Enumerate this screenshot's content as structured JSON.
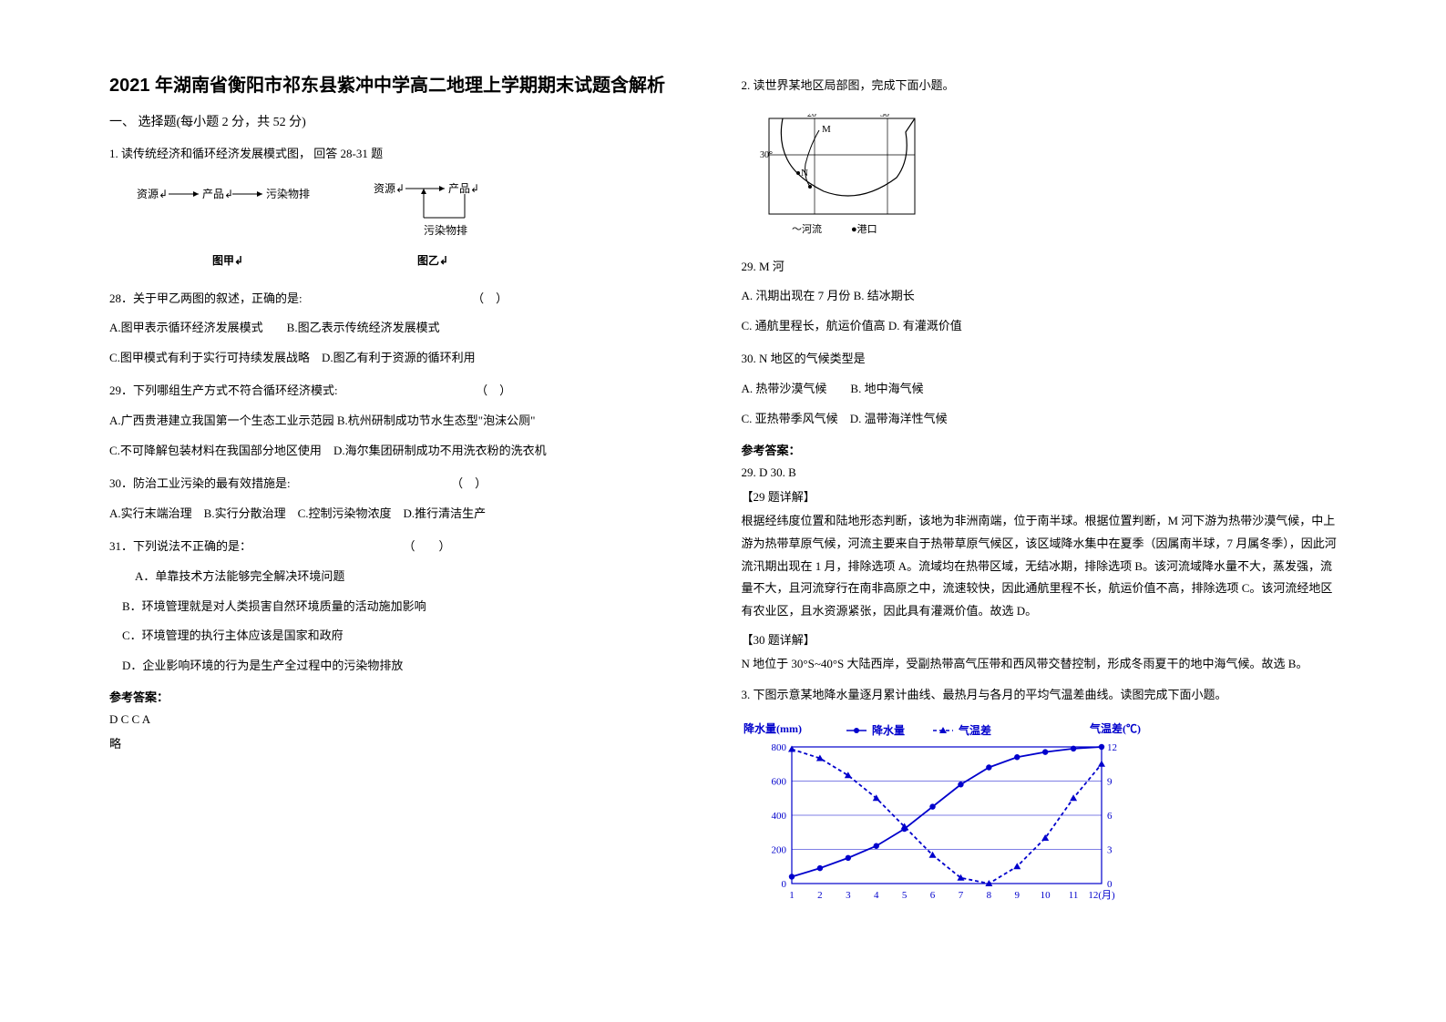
{
  "title": "2021 年湖南省衡阳市祁东县紫冲中学高二地理上学期期末试题含解析",
  "section1_head": "一、 选择题(每小题 2 分，共 52 分)",
  "q1_intro": "1. 读传统经济和循环经济发展模式图， 回答 28-31 题",
  "diagram": {
    "jia": {
      "flow": [
        "资源↲",
        "产品↲",
        "污染物排"
      ],
      "label": "图甲↲"
    },
    "yi": {
      "top_left": "资源↲",
      "top_right": "产品↲",
      "bottom": "污染物排",
      "label": "图乙↲"
    }
  },
  "q28": {
    "stem": "28．关于甲乙两图的叙述，正确的是:",
    "paren": "（　）",
    "optA": "A.图甲表示循环经济发展模式",
    "optB": "B.图乙表示传统经济发展模式",
    "optC": "C.图甲模式有利于实行可持续发展战略",
    "optD": "D.图乙有利于资源的循环利用"
  },
  "q29": {
    "stem": "29．下列哪组生产方式不符合循环经济模式:",
    "paren": "（　）",
    "optA": "A.广西贵港建立我国第一个生态工业示范园",
    "optB": "B.杭州研制成功节水生态型\"泡沫公厕\"",
    "optC": "C.不可降解包装材料在我国部分地区使用",
    "optD": "D.海尔集团研制成功不用洗衣粉的洗衣机"
  },
  "q30": {
    "stem": "30．防治工业污染的最有效措施是:",
    "paren": "（　）",
    "optA": "A.实行末端治理",
    "optB": "B.实行分散治理",
    "optC": "C.控制污染物浓度",
    "optD": "D.推行清洁生产"
  },
  "q31": {
    "stem": "31．下列说法不正确的是：",
    "paren": "（　　）",
    "optA": "A．单靠技术方法能够完全解决环境问题",
    "optB": "B．环境管理就是对人类损害自然环境质量的活动施加影响",
    "optC": "C．环境管理的执行主体应该是国家和政府",
    "optD": "D．企业影响环境的行为是生产全过程中的污染物排放"
  },
  "ans1_head": "参考答案：",
  "ans1": "D  C  C  A",
  "ans1_note": "略",
  "q2_intro": "2. 读世界某地区局部图，完成下面小题。",
  "map": {
    "lon_left": "20°",
    "lon_right": "30°",
    "lat": "30°",
    "M": "M",
    "N": "N",
    "legend_river": "～河流",
    "legend_port": "●港口"
  },
  "q29b": {
    "stem": "29.  M 河",
    "optA": "A.  汛期出现在 7 月份",
    "optB": "B.  结冰期长",
    "optC": "C.  通航里程长，航运价值高",
    "optD": "D.  有灌溉价值"
  },
  "q30b": {
    "stem": "30.  N 地区的气候类型是",
    "optA": "A.  热带沙漠气候",
    "optB": "B.  地中海气候",
    "optC": "C.  亚热带季风气候",
    "optD": "D.  温带海洋性气候"
  },
  "ans2_head": "参考答案：",
  "ans2": "29. D       30. B",
  "explain29_head": "【29 题详解】",
  "explain29_body": "根据经纬度位置和陆地形态判断，该地为非洲南端，位于南半球。根据位置判断，M 河下游为热带沙漠气候，中上游为热带草原气候，河流主要来自于热带草原气候区，该区域降水集中在夏季（因属南半球，7 月属冬季），因此河流汛期出现在 1 月，排除选项 A。流域均在热带区域，无结冰期，排除选项 B。该河流域降水量不大，蒸发强，流量不大，且河流穿行在南非高原之中，流速较快，因此通航里程不长，航运价值不高，排除选项 C。该河流经地区有农业区，且水资源紧张，因此具有灌溉价值。故选 D。",
  "explain30_head": "【30 题详解】",
  "explain30_body": "N 地位于 30°S~40°S 大陆西岸，受副热带高气压带和西风带交替控制，形成冬雨夏干的地中海气候。故选 B。",
  "q3_intro": "3. 下图示意某地降水量逐月累计曲线、最热月与各月的平均气温差曲线。读图完成下面小题。",
  "chart": {
    "type": "line",
    "title_left": "降水量(mm)",
    "title_right": "气温差(℃)",
    "legend_precip": "降水量",
    "legend_temp": "气温差",
    "x_label": "12(月)",
    "x_ticks": [
      "1",
      "2",
      "3",
      "4",
      "5",
      "6",
      "7",
      "8",
      "9",
      "10",
      "11",
      "12(月)"
    ],
    "y_left_ticks": [
      0,
      200,
      400,
      600,
      800
    ],
    "y_right_ticks": [
      0,
      3,
      6,
      9,
      12
    ],
    "precip_values": [
      40,
      90,
      150,
      220,
      320,
      450,
      580,
      680,
      740,
      770,
      790,
      800
    ],
    "temp_values": [
      11.8,
      11.0,
      9.5,
      7.5,
      5.0,
      2.5,
      0.5,
      0.0,
      1.5,
      4.0,
      7.5,
      10.5
    ],
    "precip_color": "#0000cc",
    "temp_color": "#0000cc",
    "grid_color": "#0000cc",
    "bg_color": "#ffffff",
    "axis_color": "#0000cc",
    "font_size": 11,
    "precip_marker": "circle",
    "temp_marker": "triangle",
    "temp_dash": "4,3"
  }
}
